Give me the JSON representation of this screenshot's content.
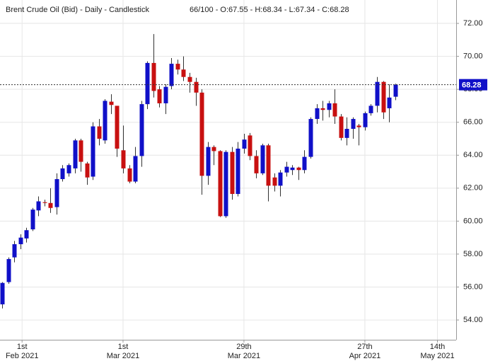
{
  "chart_data": {
    "type": "candlestick",
    "title": "Brent Crude Oil (Bid) - Daily - Candlestick",
    "info": "66/100 - O:67.55 - H:68.34 - L:67.34 - C:68.28",
    "up_color": "#1010c8",
    "down_color": "#c81010",
    "open": [
      54.95,
      56.3,
      57.8,
      58.6,
      58.95,
      59.5,
      60.65,
      61.15,
      61.1,
      60.85,
      62.55,
      62.9,
      63.2,
      64.9,
      63.5,
      62.7,
      65.75,
      64.9,
      67.25,
      67.0,
      64.3,
      63.2,
      62.4,
      63.95,
      67.1,
      69.6,
      68.0,
      67.15,
      68.2,
      69.55,
      69.2,
      68.75,
      68.45,
      67.8,
      62.75,
      64.5,
      64.25,
      60.3,
      64.2,
      61.65,
      64.4,
      65.2,
      63.95,
      62.9,
      64.6,
      62.65,
      62.15,
      62.95,
      63.1,
      63.25,
      63.1,
      63.9,
      66.2,
      66.85,
      66.75,
      67.15,
      66.35,
      65.05,
      65.6,
      65.8,
      65.7,
      66.55,
      67.0,
      68.45,
      66.85,
      67.55
    ],
    "high": [
      56.3,
      57.8,
      58.8,
      59.2,
      59.6,
      60.8,
      61.5,
      61.3,
      62.0,
      62.9,
      63.4,
      63.5,
      65.0,
      65.0,
      63.6,
      66.0,
      66.2,
      67.4,
      67.7,
      67.0,
      65.8,
      63.4,
      64.5,
      67.3,
      69.7,
      71.35,
      68.2,
      68.3,
      69.9,
      69.8,
      70.0,
      69.0,
      68.7,
      68.0,
      64.8,
      64.6,
      64.3,
      64.3,
      64.5,
      64.8,
      65.3,
      65.35,
      64.3,
      64.7,
      64.7,
      62.9,
      63.1,
      63.6,
      63.4,
      63.3,
      64.3,
      66.3,
      67.1,
      67.3,
      67.3,
      68.0,
      66.5,
      66.3,
      66.3,
      65.9,
      66.65,
      67.1,
      68.75,
      68.5,
      68.3,
      68.34
    ],
    "low": [
      54.7,
      56.2,
      57.5,
      58.3,
      58.7,
      59.4,
      60.3,
      60.9,
      60.5,
      60.4,
      62.4,
      62.7,
      62.9,
      63.0,
      62.2,
      62.5,
      64.6,
      64.7,
      66.5,
      63.9,
      62.9,
      62.3,
      62.3,
      63.3,
      66.8,
      67.5,
      66.9,
      66.5,
      68.0,
      68.9,
      68.5,
      67.8,
      67.0,
      61.6,
      62.2,
      63.4,
      60.25,
      60.2,
      61.3,
      61.5,
      64.1,
      63.7,
      62.6,
      62.8,
      61.2,
      61.8,
      61.5,
      62.7,
      62.8,
      62.5,
      62.9,
      63.8,
      65.9,
      66.1,
      66.3,
      65.9,
      64.9,
      64.6,
      65.0,
      64.6,
      65.5,
      66.4,
      66.6,
      66.2,
      66.0,
      67.34
    ],
    "close": [
      56.25,
      57.7,
      58.6,
      59.0,
      59.45,
      60.7,
      61.2,
      61.1,
      60.8,
      62.55,
      63.2,
      63.4,
      64.9,
      63.6,
      62.65,
      65.75,
      65.0,
      67.3,
      67.05,
      64.4,
      63.2,
      62.4,
      63.95,
      67.1,
      69.6,
      67.9,
      67.15,
      68.15,
      69.55,
      69.2,
      68.75,
      68.45,
      67.8,
      62.75,
      64.5,
      64.25,
      60.3,
      64.2,
      61.65,
      64.4,
      64.95,
      63.95,
      62.9,
      64.6,
      62.15,
      62.15,
      62.95,
      63.3,
      63.25,
      63.1,
      63.9,
      66.2,
      66.85,
      66.75,
      67.15,
      66.35,
      65.05,
      65.6,
      66.2,
      65.7,
      66.55,
      67.0,
      68.45,
      66.6,
      67.5,
      68.28
    ],
    "last_price": {
      "value": 68.28,
      "label": "68.28"
    },
    "ylim": [
      52.8,
      73.42
    ],
    "yticks": [
      {
        "value": 54,
        "label": "54.00"
      },
      {
        "value": 56,
        "label": "56.00"
      },
      {
        "value": 58,
        "label": "58.00"
      },
      {
        "value": 60,
        "label": "60.00"
      },
      {
        "value": 62,
        "label": "62.00"
      },
      {
        "value": 64,
        "label": "64.00"
      },
      {
        "value": 66,
        "label": "66.00"
      },
      {
        "value": 68,
        "label": "68.00"
      },
      {
        "value": 70,
        "label": "70.00"
      },
      {
        "value": 72,
        "label": "72.00"
      }
    ],
    "xlim": [
      -0.35,
      75.1
    ],
    "xticks": [
      {
        "value": 3.3,
        "label": "1st Feb 2021"
      },
      {
        "value": 20,
        "label": "1st Mar 2021"
      },
      {
        "value": 40,
        "label": "29th Mar 2021"
      },
      {
        "value": 60,
        "label": "27th Apr 2021"
      },
      {
        "value": 72,
        "label": "14th May 2021"
      }
    ],
    "grid": true
  }
}
